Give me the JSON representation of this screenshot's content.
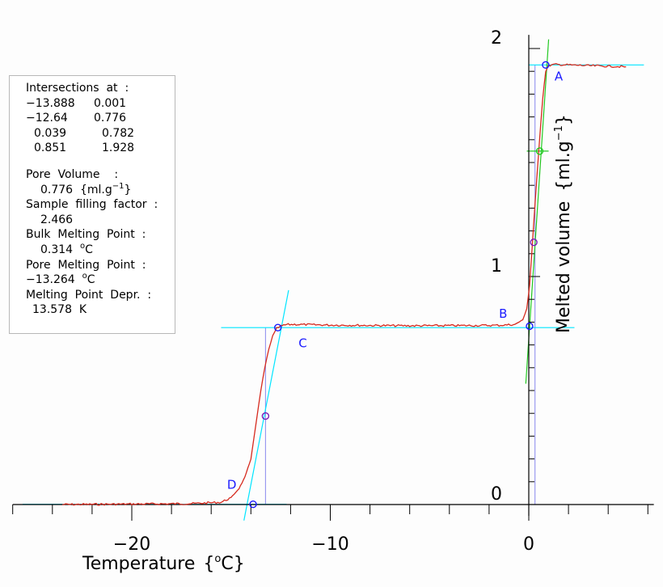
{
  "chart_data": {
    "type": "line",
    "title": "",
    "xlabel": "Temperature",
    "xlabel_unit": "{°C}",
    "ylabel": "Melted volume",
    "ylabel_unit": "{ml.g⁻¹}",
    "x_ticks": [
      "−20",
      "−10",
      "0"
    ],
    "y_ticks": [
      "0",
      "1",
      "2"
    ],
    "xlim": [
      -26,
      6.3
    ],
    "ylim": [
      -0.06,
      2.06
    ],
    "grid": false,
    "legend": "none",
    "series": [
      {
        "style": "melt-curve",
        "color": "#d62a1e",
        "x": [
          -23.5,
          -20,
          -17,
          -15.5,
          -15,
          -14.6,
          -14.3,
          -14.0,
          -13.9,
          -13.7,
          -13.5,
          -13.3,
          -13.1,
          -12.9,
          -12.7,
          -12.5,
          -12.2,
          -11.8,
          -10,
          -6,
          -3,
          -1.5,
          -0.7,
          -0.3,
          -0.1,
          0.039,
          0.15,
          0.3,
          0.5,
          0.7,
          0.851,
          1.0,
          1.3,
          2,
          3,
          4.9
        ],
        "y": [
          0.0,
          0.002,
          0.004,
          0.01,
          0.03,
          0.07,
          0.12,
          0.2,
          0.26,
          0.38,
          0.5,
          0.6,
          0.68,
          0.74,
          0.772,
          0.782,
          0.789,
          0.79,
          0.787,
          0.784,
          0.785,
          0.786,
          0.79,
          0.81,
          0.86,
          0.96,
          1.1,
          1.3,
          1.55,
          1.78,
          1.9,
          1.925,
          1.93,
          1.928,
          1.925,
          1.92
        ]
      }
    ],
    "tangent_lines": [
      {
        "name": "cyan-baseline-low",
        "color": "#00e5ff",
        "x": [
          -25.5,
          -12.2
        ],
        "y": [
          0.001,
          0.001
        ]
      },
      {
        "name": "cyan-plateau-mid",
        "color": "#00e5ff",
        "x": [
          -15.5,
          2.3
        ],
        "y": [
          0.776,
          0.776
        ]
      },
      {
        "name": "cyan-plateau-top",
        "color": "#00e5ff",
        "x": [
          0,
          5.8
        ],
        "y": [
          1.928,
          1.928
        ]
      },
      {
        "name": "cyan-rise-pore",
        "color": "#00e5ff",
        "x": [
          -14.35,
          -12.1
        ],
        "y": [
          -0.07,
          0.94
        ]
      },
      {
        "name": "green-rise-bulk",
        "color": "#22c922",
        "x": [
          -0.15,
          1.0
        ],
        "y": [
          0.53,
          2.04
        ]
      },
      {
        "name": "green-mid-marker",
        "color": "#22c922",
        "x": [
          -0.1,
          1.0
        ],
        "y": [
          1.55,
          1.55
        ]
      }
    ],
    "drop_lines": [
      {
        "name": "pore-melting-drop",
        "color": "#8888ee",
        "x": -13.264,
        "y_from": 0,
        "y_to": 0.776
      },
      {
        "name": "bulk-melting-drop",
        "color": "#8888ee",
        "x": 0.314,
        "y_from": 0,
        "y_to": 1.928
      }
    ],
    "markers": [
      {
        "name": "A",
        "x": 0.851,
        "y": 1.928,
        "color": "#1a1aff",
        "shape": "circle"
      },
      {
        "name": "B",
        "x": 0.039,
        "y": 0.782,
        "color": "#1a1aff",
        "shape": "circle"
      },
      {
        "name": "C",
        "x": -12.64,
        "y": 0.776,
        "color": "#1a1aff",
        "shape": "circle"
      },
      {
        "name": "D",
        "x": -13.888,
        "y": 0.001,
        "color": "#1a1aff",
        "shape": "circle"
      },
      {
        "name": "pore-mid",
        "x": -13.264,
        "y": 0.388,
        "color": "#7a1ab8",
        "shape": "circle"
      },
      {
        "name": "bulk-mid",
        "x": 0.25,
        "y": 1.15,
        "color": "#7a1ab8",
        "shape": "circle"
      },
      {
        "name": "bulk-upper",
        "x": 0.55,
        "y": 1.55,
        "color": "#22c922",
        "shape": "circle"
      }
    ],
    "point_labels": [
      {
        "text": "A",
        "x": 1.3,
        "y": 1.86
      },
      {
        "text": "B",
        "x": -1.5,
        "y": 0.82
      },
      {
        "text": "C",
        "x": -11.6,
        "y": 0.69
      },
      {
        "text": "D",
        "x": -15.2,
        "y": 0.07
      }
    ]
  },
  "info": {
    "intersections_title": "Intersections  at  :",
    "intersections": [
      [
        "−13.888",
        "0.001"
      ],
      [
        "−12.64",
        "0.776"
      ],
      [
        "0.039",
        "0.782"
      ],
      [
        "0.851",
        "1.928"
      ]
    ],
    "pore_volume_label": "Pore  Volume    :",
    "pore_volume_value": "0.776",
    "pore_volume_unit": "{ml.g",
    "sample_filling_label": "Sample  filling  factor  :",
    "sample_filling_value": "2.466",
    "bulk_mp_label": "Bulk  Melting  Point  :",
    "bulk_mp_value": "0.314",
    "pore_mp_label": "Pore  Melting  Point  :",
    "pore_mp_value": "−13.264",
    "mp_depr_label": "Melting  Point  Depr.  :",
    "mp_depr_value": "13.578",
    "mp_depr_unit": "K"
  }
}
